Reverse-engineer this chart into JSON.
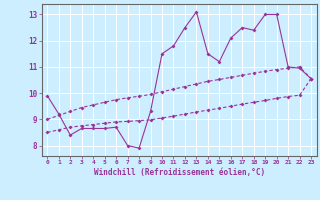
{
  "xlabel": "Windchill (Refroidissement éolien,°C)",
  "background_color": "#cceeff",
  "grid_color": "#ffffff",
  "line_color": "#993399",
  "xlim": [
    -0.5,
    23.5
  ],
  "ylim": [
    7.6,
    13.4
  ],
  "xticks": [
    0,
    1,
    2,
    3,
    4,
    5,
    6,
    7,
    8,
    9,
    10,
    11,
    12,
    13,
    14,
    15,
    16,
    17,
    18,
    19,
    20,
    21,
    22,
    23
  ],
  "yticks": [
    8,
    9,
    10,
    11,
    12,
    13
  ],
  "line1_x": [
    0,
    1,
    2,
    3,
    4,
    5,
    6,
    7,
    8,
    9,
    10,
    11,
    12,
    13,
    14,
    15,
    16,
    17,
    18,
    19,
    20,
    21,
    22,
    23
  ],
  "line1_y": [
    9.9,
    9.2,
    8.4,
    8.65,
    8.65,
    8.65,
    8.7,
    8.0,
    7.9,
    9.3,
    11.5,
    11.8,
    12.5,
    13.1,
    11.5,
    11.2,
    12.1,
    12.5,
    12.4,
    13.0,
    13.0,
    11.0,
    10.95,
    10.55
  ],
  "line2_x": [
    0,
    1,
    2,
    3,
    4,
    5,
    6,
    7,
    8,
    9,
    10,
    11,
    12,
    13,
    14,
    15,
    16,
    17,
    18,
    19,
    20,
    21,
    22,
    23
  ],
  "line2_y": [
    9.0,
    9.15,
    9.3,
    9.45,
    9.55,
    9.65,
    9.75,
    9.82,
    9.88,
    9.95,
    10.05,
    10.15,
    10.25,
    10.35,
    10.45,
    10.52,
    10.6,
    10.68,
    10.76,
    10.83,
    10.9,
    10.95,
    11.0,
    10.55
  ],
  "line3_x": [
    0,
    1,
    2,
    3,
    4,
    5,
    6,
    7,
    8,
    9,
    10,
    11,
    12,
    13,
    14,
    15,
    16,
    17,
    18,
    19,
    20,
    21,
    22,
    23
  ],
  "line3_y": [
    8.5,
    8.6,
    8.7,
    8.75,
    8.8,
    8.85,
    8.9,
    8.92,
    8.95,
    8.98,
    9.05,
    9.12,
    9.2,
    9.28,
    9.35,
    9.42,
    9.5,
    9.58,
    9.65,
    9.72,
    9.8,
    9.87,
    9.92,
    10.55
  ]
}
